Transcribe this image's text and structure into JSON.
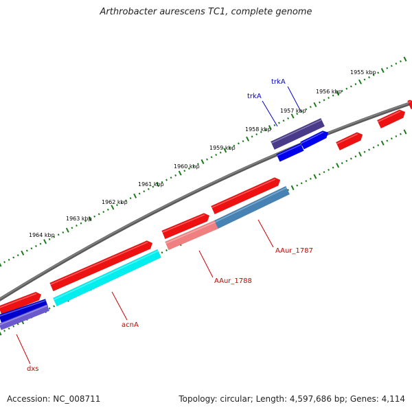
{
  "title": "Arthrobacter aurescens TC1, complete genome",
  "footer": {
    "accession": "Accession: NC_008711",
    "summary": "Topology: circular; Length: 4,597,686 bp; Genes: 4,114"
  },
  "colors": {
    "backbone": "#808080",
    "tick_marks": "#1a7a1a",
    "cds_forward": "#ee1111",
    "label_red": "#cc0000",
    "label_blue": "#0000cc"
  },
  "scale_ticks": [
    {
      "label": "1955 kbp"
    },
    {
      "label": "1956 kbp"
    },
    {
      "label": "1957 kbp"
    },
    {
      "label": "1958 kbp"
    },
    {
      "label": "1959 kbp"
    },
    {
      "label": "1960 kbp"
    },
    {
      "label": "1961 kbp"
    },
    {
      "label": "1962 kbp"
    },
    {
      "label": "1963 kbp"
    },
    {
      "label": "1964 kbp"
    }
  ],
  "gene_labels": [
    {
      "text": "trkA",
      "color": "#0000cc"
    },
    {
      "text": "trkA",
      "color": "#0000cc"
    },
    {
      "text": "AAur_1787",
      "color": "#cc0000"
    },
    {
      "text": "AAur_1788",
      "color": "#cc0000"
    },
    {
      "text": "acnA",
      "color": "#cc0000"
    },
    {
      "text": "dxs",
      "color": "#cc0000"
    }
  ],
  "features": [
    {
      "track": "forward",
      "color": "#ee1111"
    },
    {
      "track": "forward",
      "color": "#ee1111"
    },
    {
      "track": "forward",
      "color": "#ee1111"
    },
    {
      "track": "forward",
      "color": "#ee1111"
    },
    {
      "track": "forward",
      "color": "#ee1111"
    },
    {
      "track": "forward",
      "color": "#ee1111"
    },
    {
      "track": "forward",
      "color": "#ee1111"
    },
    {
      "track": "forward",
      "color": "#ee1111"
    },
    {
      "track": "outer",
      "color": "#4a3a8a"
    },
    {
      "track": "reverse",
      "color": "#0000ee"
    },
    {
      "track": "reverse",
      "color": "#0000ee"
    },
    {
      "track": "reverse",
      "color": "#4682b4"
    },
    {
      "track": "reverse",
      "color": "#f08080"
    },
    {
      "track": "reverse",
      "color": "#00eeee"
    },
    {
      "track": "reverse",
      "color": "#0000cc"
    },
    {
      "track": "reverse",
      "color": "#6a5acd"
    }
  ]
}
